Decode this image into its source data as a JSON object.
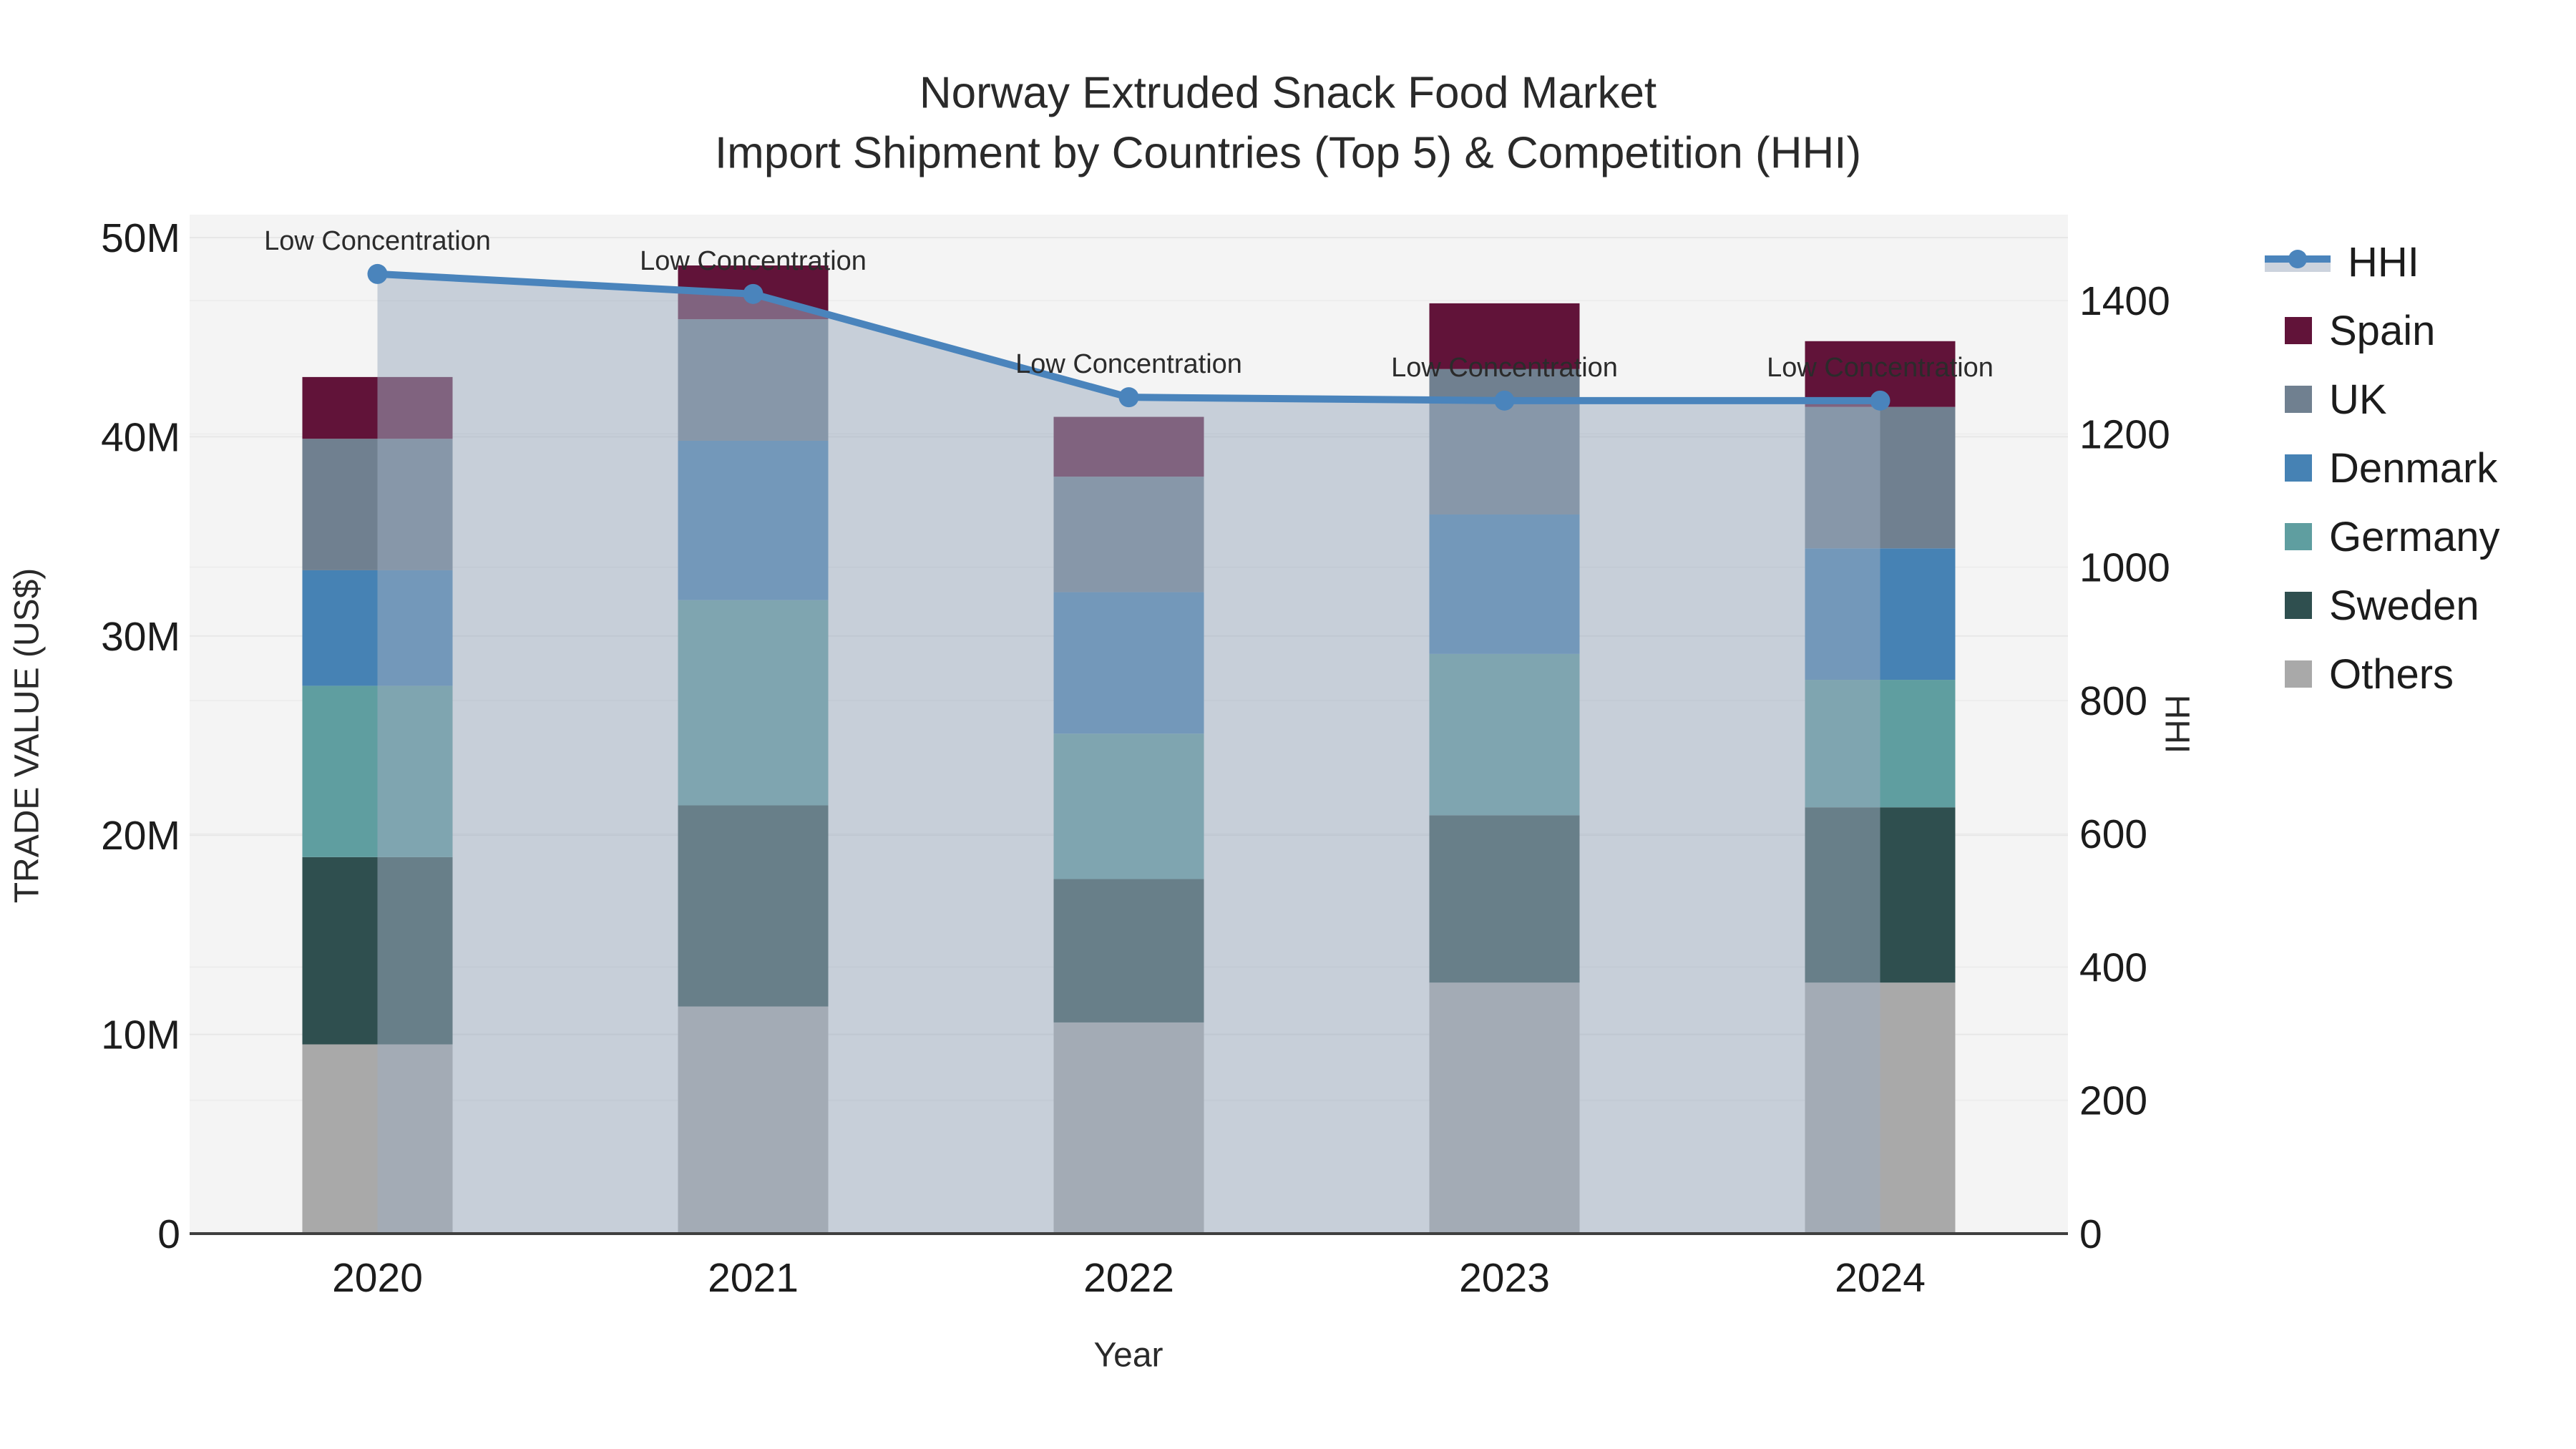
{
  "title": {
    "line1": "Norway Extruded Snack Food Market",
    "line2": "Import Shipment by Countries (Top 5) & Competition (HHI)"
  },
  "chart_data": {
    "type": "bar",
    "subtype": "stacked-bars-with-line-overlay",
    "categories": [
      "2020",
      "2021",
      "2022",
      "2023",
      "2024"
    ],
    "stack_order_bottom_to_top": [
      "Others",
      "Sweden",
      "Germany",
      "Denmark",
      "UK",
      "Spain"
    ],
    "series": [
      {
        "name": "Spain",
        "color": "#611339",
        "values": [
          3.1,
          2.7,
          3.0,
          3.3,
          3.3
        ]
      },
      {
        "name": "UK",
        "color": "#708090",
        "values": [
          6.6,
          6.1,
          5.8,
          7.3,
          7.1
        ]
      },
      {
        "name": "Denmark",
        "color": "#4682B4",
        "values": [
          5.8,
          8.0,
          7.1,
          7.0,
          6.6
        ]
      },
      {
        "name": "Germany",
        "color": "#5F9EA0",
        "values": [
          8.6,
          10.3,
          7.3,
          8.1,
          6.4
        ]
      },
      {
        "name": "Sweden",
        "color": "#2F4F4F",
        "values": [
          9.4,
          10.1,
          7.2,
          8.4,
          8.8
        ]
      },
      {
        "name": "Others",
        "color": "#A9A9A9",
        "values": [
          9.5,
          11.4,
          10.6,
          12.6,
          12.6
        ]
      }
    ],
    "bar_totals_millions": [
      43.0,
      48.6,
      41.0,
      46.7,
      44.8
    ],
    "line_series": {
      "name": "HHI",
      "values": [
        1440,
        1410,
        1255,
        1250,
        1250
      ],
      "line_color": "#4A84BC",
      "marker_color": "#4A84BC",
      "area_fill": "rgba(158,172,192,0.52)"
    },
    "annotations": [
      {
        "text": "Low Concentration",
        "category": "2020"
      },
      {
        "text": "Low Concentration",
        "category": "2021"
      },
      {
        "text": "Low Concentration",
        "category": "2022"
      },
      {
        "text": "Low Concentration",
        "category": "2023"
      },
      {
        "text": "Low Concentration",
        "category": "2024"
      }
    ],
    "xlabel": "Year",
    "ylabel": "TRADE VALUE (US$)",
    "y2label": "HHI",
    "ylim": [
      0,
      51.15
    ],
    "y2lim": [
      0,
      1529
    ],
    "yticks": [
      {
        "value": 0,
        "label": "0"
      },
      {
        "value": 10,
        "label": "10M"
      },
      {
        "value": 20,
        "label": "20M"
      },
      {
        "value": 30,
        "label": "30M"
      },
      {
        "value": 40,
        "label": "40M"
      },
      {
        "value": 50,
        "label": "50M"
      }
    ],
    "y2ticks": [
      {
        "value": 0,
        "label": "0"
      },
      {
        "value": 200,
        "label": "200"
      },
      {
        "value": 400,
        "label": "400"
      },
      {
        "value": 600,
        "label": "600"
      },
      {
        "value": 800,
        "label": "800"
      },
      {
        "value": 1000,
        "label": "1000"
      },
      {
        "value": 1200,
        "label": "1200"
      },
      {
        "value": 1400,
        "label": "1400"
      }
    ],
    "grid": true,
    "legend_position": "right-outside",
    "plot_bg": "#f4f4f4",
    "gridline_color": "#e7e7e7",
    "gridline_color_secondary": "#ededed",
    "axisline_color": "#3f3f3f",
    "tick_text_color": "#1c1c1c",
    "annotation_text_color": "#2b2b2b"
  },
  "legend": {
    "items": [
      {
        "name": "HHI",
        "type": "line",
        "color": "#4A84BC",
        "band": "#ccd3dd"
      },
      {
        "name": "Spain",
        "type": "swatch",
        "color": "#611339"
      },
      {
        "name": "UK",
        "type": "swatch",
        "color": "#708090"
      },
      {
        "name": "Denmark",
        "type": "swatch",
        "color": "#4682B4"
      },
      {
        "name": "Germany",
        "type": "swatch",
        "color": "#5F9EA0"
      },
      {
        "name": "Sweden",
        "type": "swatch",
        "color": "#2F4F4F"
      },
      {
        "name": "Others",
        "type": "swatch",
        "color": "#A9A9A9"
      }
    ]
  }
}
